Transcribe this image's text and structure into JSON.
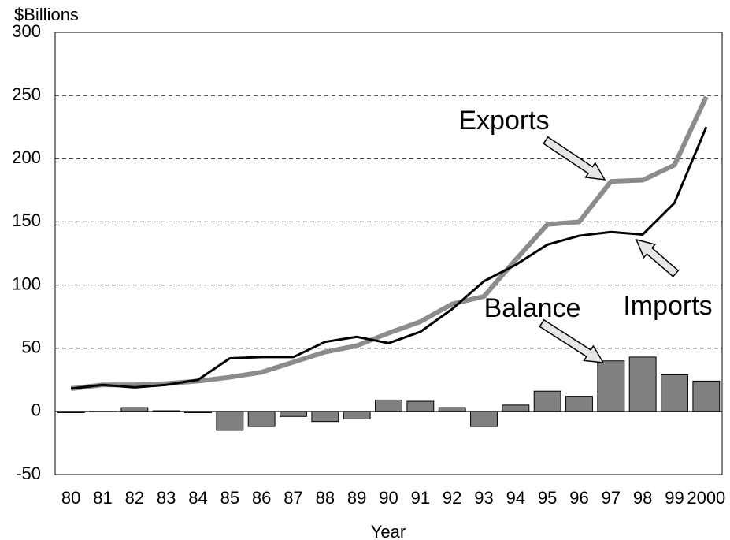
{
  "chart_data": {
    "type": "line",
    "y_label": "$Billions",
    "x_label": "Year",
    "categories": [
      "80",
      "81",
      "82",
      "83",
      "84",
      "85",
      "86",
      "87",
      "88",
      "89",
      "90",
      "91",
      "92",
      "93",
      "94",
      "95",
      "96",
      "97",
      "98",
      "99",
      "2000"
    ],
    "series": [
      {
        "name": "Exports",
        "color": "#8c8c8c",
        "type": "line",
        "values": [
          18,
          21,
          21,
          22,
          24,
          27,
          31,
          39,
          47,
          52,
          62,
          71,
          85,
          91,
          120,
          148,
          150,
          182,
          183,
          195,
          249
        ]
      },
      {
        "name": "Imports",
        "color": "#000000",
        "type": "line",
        "values": [
          18,
          21,
          19,
          21,
          25,
          42,
          43,
          43,
          55,
          59,
          54,
          63,
          81,
          103,
          116,
          132,
          139,
          142,
          140,
          165,
          225
        ]
      },
      {
        "name": "Balance",
        "color": "#808080",
        "type": "bar",
        "values": [
          -1,
          0,
          3,
          0.5,
          -1,
          -15,
          -12,
          -4,
          -8,
          -6,
          9,
          8,
          3,
          -12,
          5,
          16,
          12,
          40,
          43,
          29,
          24
        ]
      }
    ],
    "ylim": [
      -50,
      300
    ],
    "yticks": [
      -50,
      0,
      50,
      100,
      150,
      200,
      250,
      300
    ],
    "grid": true
  }
}
